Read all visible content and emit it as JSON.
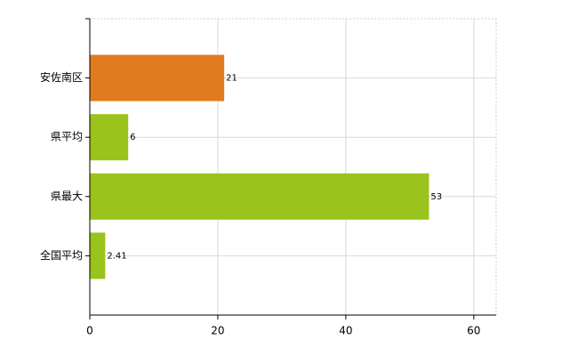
{
  "chart_data": {
    "type": "hbar",
    "categories": [
      "安佐南区",
      "県平均",
      "県最大",
      "全国平均"
    ],
    "values": [
      21,
      6,
      53,
      2.41
    ],
    "colors": [
      "#e07b1f",
      "#9ac31c",
      "#9ac31c",
      "#9ac31c"
    ],
    "xlim": [
      0,
      63.5
    ],
    "xticks": [
      0,
      20,
      40,
      60
    ],
    "grid": true
  }
}
